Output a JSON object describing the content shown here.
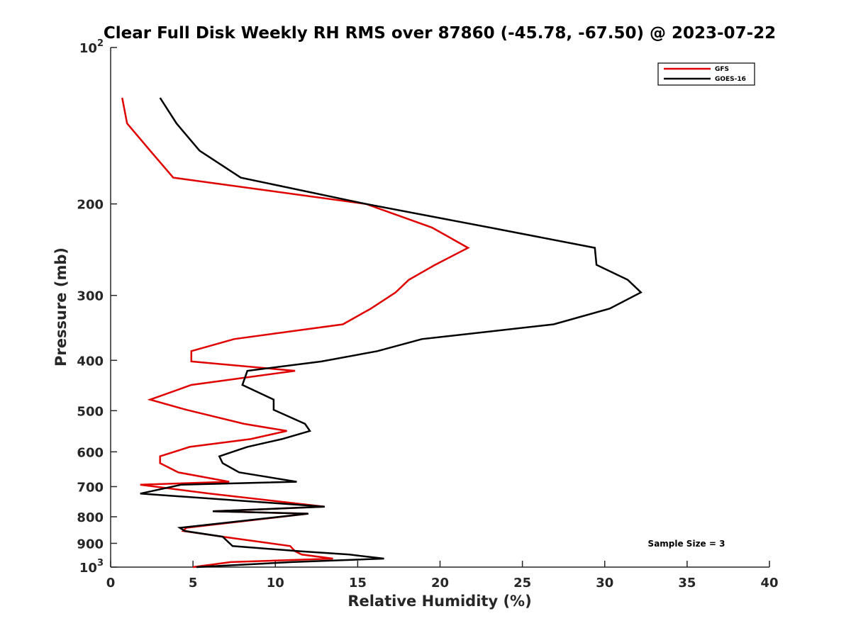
{
  "chart_data": {
    "type": "line",
    "title": "Clear Full Disk Weekly RH RMS over 87860 (-45.78, -67.50) @ 2023-07-22",
    "xlabel": "Relative Humidity (%)",
    "ylabel": "Pressure (mb)",
    "xlim": [
      0,
      40
    ],
    "ylim": [
      100,
      1000
    ],
    "yscale": "log",
    "y_reversed": true,
    "grid": false,
    "legend_position": "top-right",
    "x_ticks": [
      0,
      5,
      10,
      15,
      20,
      25,
      30,
      35,
      40
    ],
    "x_tick_labels": [
      "0",
      "5",
      "10",
      "15",
      "20",
      "25",
      "30",
      "35",
      "40"
    ],
    "y_ticks": [
      100,
      200,
      300,
      400,
      500,
      600,
      700,
      800,
      900,
      1000
    ],
    "y_tick_labels": [
      {
        "base": "10",
        "exp": "2"
      },
      {
        "base": "200",
        "exp": ""
      },
      {
        "base": "300",
        "exp": ""
      },
      {
        "base": "400",
        "exp": ""
      },
      {
        "base": "500",
        "exp": ""
      },
      {
        "base": "600",
        "exp": ""
      },
      {
        "base": "700",
        "exp": ""
      },
      {
        "base": "800",
        "exp": ""
      },
      {
        "base": "900",
        "exp": ""
      },
      {
        "base": "10",
        "exp": "3"
      }
    ],
    "annotations": [
      "Sample Size = 3"
    ],
    "series": [
      {
        "name": "GFS",
        "color": "#e00000",
        "points": [
          [
            0.7,
            125
          ],
          [
            1.0,
            140
          ],
          [
            2.4,
            158
          ],
          [
            3.8,
            178
          ],
          [
            15.5,
            200
          ],
          [
            19.5,
            222
          ],
          [
            21.7,
            243
          ],
          [
            19.7,
            262
          ],
          [
            18.1,
            280
          ],
          [
            17.3,
            296
          ],
          [
            15.8,
            318
          ],
          [
            14.1,
            341
          ],
          [
            7.5,
            364
          ],
          [
            4.9,
            384
          ],
          [
            4.9,
            402
          ],
          [
            11.2,
            419
          ],
          [
            4.9,
            446
          ],
          [
            2.4,
            476
          ],
          [
            4.6,
            498
          ],
          [
            8.1,
            530
          ],
          [
            10.7,
            547
          ],
          [
            8.5,
            567
          ],
          [
            4.8,
            587
          ],
          [
            3.0,
            612
          ],
          [
            3.0,
            631
          ],
          [
            4.1,
            657
          ],
          [
            7.2,
            685
          ],
          [
            1.8,
            694
          ],
          [
            6.0,
            722
          ],
          [
            13.0,
            765
          ],
          [
            6.2,
            781
          ],
          [
            12.0,
            789
          ],
          [
            4.6,
            840
          ],
          [
            4.4,
            852
          ],
          [
            6.8,
            874
          ],
          [
            10.9,
            911
          ],
          [
            11.2,
            932
          ],
          [
            11.6,
            946
          ],
          [
            13.5,
            963
          ],
          [
            7.3,
            978
          ],
          [
            5.0,
            1000
          ]
        ]
      },
      {
        "name": "GOES-16",
        "color": "#000000",
        "points": [
          [
            3.0,
            125
          ],
          [
            4.0,
            140
          ],
          [
            5.4,
            158
          ],
          [
            7.9,
            178
          ],
          [
            15.5,
            200
          ],
          [
            23.0,
            222
          ],
          [
            29.4,
            243
          ],
          [
            29.5,
            262
          ],
          [
            31.4,
            280
          ],
          [
            32.2,
            296
          ],
          [
            30.3,
            318
          ],
          [
            26.9,
            341
          ],
          [
            18.9,
            364
          ],
          [
            16.2,
            384
          ],
          [
            12.8,
            402
          ],
          [
            8.3,
            419
          ],
          [
            8.0,
            446
          ],
          [
            9.9,
            476
          ],
          [
            9.9,
            498
          ],
          [
            11.8,
            530
          ],
          [
            12.1,
            547
          ],
          [
            10.4,
            567
          ],
          [
            8.3,
            587
          ],
          [
            6.6,
            612
          ],
          [
            6.8,
            631
          ],
          [
            7.8,
            657
          ],
          [
            11.3,
            685
          ],
          [
            4.3,
            694
          ],
          [
            1.8,
            722
          ],
          [
            13.0,
            765
          ],
          [
            6.2,
            781
          ],
          [
            12.0,
            789
          ],
          [
            4.2,
            840
          ],
          [
            4.5,
            852
          ],
          [
            6.8,
            874
          ],
          [
            7.4,
            911
          ],
          [
            11.5,
            932
          ],
          [
            14.5,
            946
          ],
          [
            16.6,
            963
          ],
          [
            11.0,
            978
          ],
          [
            5.2,
            1000
          ]
        ]
      }
    ]
  }
}
